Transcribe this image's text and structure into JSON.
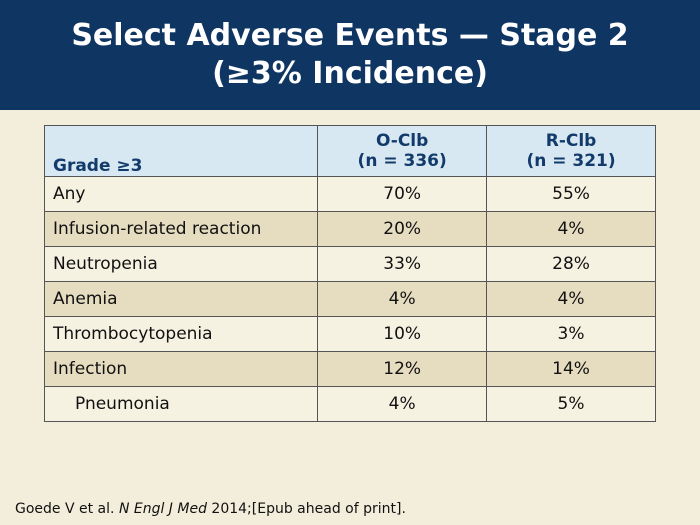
{
  "title_line1": "Select Adverse Events — Stage 2",
  "title_line2": "(≥3% Incidence)",
  "table": {
    "header_label": "Grade ≥3",
    "col_a_line1": "O-Clb",
    "col_a_line2": "(n = 336)",
    "col_b_line1": "R-Clb",
    "col_b_line2": "(n = 321)",
    "rows": [
      {
        "label": "Any",
        "a": "70%",
        "b": "55%"
      },
      {
        "label": "Infusion-related reaction",
        "a": "20%",
        "b": "4%"
      },
      {
        "label": "Neutropenia",
        "a": "33%",
        "b": "28%"
      },
      {
        "label": "Anemia",
        "a": "4%",
        "b": "4%"
      },
      {
        "label": "Thrombocytopenia",
        "a": "10%",
        "b": "3%"
      },
      {
        "label": "Infection",
        "a": "12%",
        "b": "14%"
      },
      {
        "label": "Pneumonia",
        "a": "4%",
        "b": "5%"
      }
    ]
  },
  "citation": {
    "prefix": "Goede V et al.",
    "journal": "N Engl J Med",
    "suffix": "2014;[Epub ahead of print]."
  }
}
